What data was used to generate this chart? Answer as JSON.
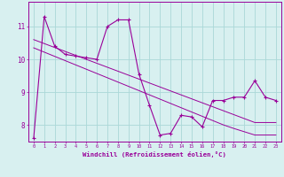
{
  "xlabel": "Windchill (Refroidissement éolien,°C)",
  "x": [
    0,
    1,
    2,
    3,
    4,
    5,
    6,
    7,
    8,
    9,
    10,
    11,
    12,
    13,
    14,
    15,
    16,
    17,
    18,
    19,
    20,
    21,
    22,
    23
  ],
  "y_main": [
    7.6,
    11.3,
    10.4,
    10.15,
    10.1,
    10.05,
    10.0,
    11.0,
    11.2,
    11.2,
    9.55,
    8.6,
    7.7,
    7.75,
    8.3,
    8.25,
    7.95,
    8.75,
    8.75,
    8.85,
    8.85,
    9.35,
    8.85,
    8.75
  ],
  "y_line1": [
    10.6,
    10.48,
    10.36,
    10.24,
    10.12,
    10.0,
    9.88,
    9.76,
    9.64,
    9.52,
    9.4,
    9.28,
    9.16,
    9.04,
    8.92,
    8.8,
    8.68,
    8.56,
    8.44,
    8.32,
    8.2,
    8.08,
    8.08,
    8.08
  ],
  "y_line2": [
    10.35,
    10.22,
    10.09,
    9.96,
    9.83,
    9.7,
    9.57,
    9.44,
    9.31,
    9.18,
    9.05,
    8.92,
    8.79,
    8.66,
    8.53,
    8.4,
    8.27,
    8.14,
    8.01,
    7.9,
    7.8,
    7.7,
    7.7,
    7.7
  ],
  "line_color": "#990099",
  "bg_color": "#d8f0f0",
  "grid_color": "#aad8d8",
  "ylim": [
    7.5,
    11.75
  ],
  "yticks": [
    8,
    9,
    10,
    11
  ],
  "marker": "+"
}
